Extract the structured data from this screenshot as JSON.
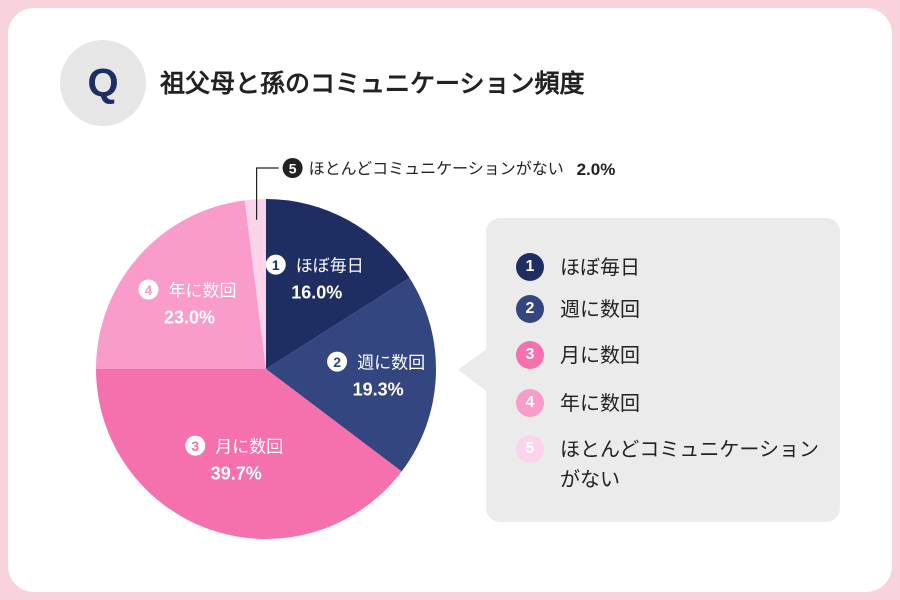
{
  "header": {
    "badge": "Q",
    "title": "祖父母と孫のコミュニケーション頻度"
  },
  "chart_data": {
    "type": "pie",
    "title": "祖父母と孫のコミュニケーション頻度",
    "unit": "%",
    "slices": [
      {
        "number": "1",
        "label": "ほぼ毎日",
        "value": 16.0,
        "display": "16.0%",
        "color": "#1e2d62"
      },
      {
        "number": "2",
        "label": "週に数回",
        "value": 19.3,
        "display": "19.3%",
        "color": "#34467f"
      },
      {
        "number": "3",
        "label": "月に数回",
        "value": 39.7,
        "display": "39.7%",
        "color": "#f571ae"
      },
      {
        "number": "4",
        "label": "年に数回",
        "value": 23.0,
        "display": "23.0%",
        "color": "#f99cc9"
      },
      {
        "number": "5",
        "label": "ほとんどコミュニケーションがない",
        "value": 2.0,
        "display": "2.0%",
        "color": "#fcd3ea"
      }
    ],
    "legend": {
      "placement": "right",
      "items": [
        {
          "number": "1",
          "label": "ほぼ毎日"
        },
        {
          "number": "2",
          "label": "週に数回"
        },
        {
          "number": "3",
          "label": "月に数回"
        },
        {
          "number": "4",
          "label": "年に数回"
        },
        {
          "number": "5",
          "label": "ほとんどコミュニケーションがない"
        }
      ]
    }
  }
}
